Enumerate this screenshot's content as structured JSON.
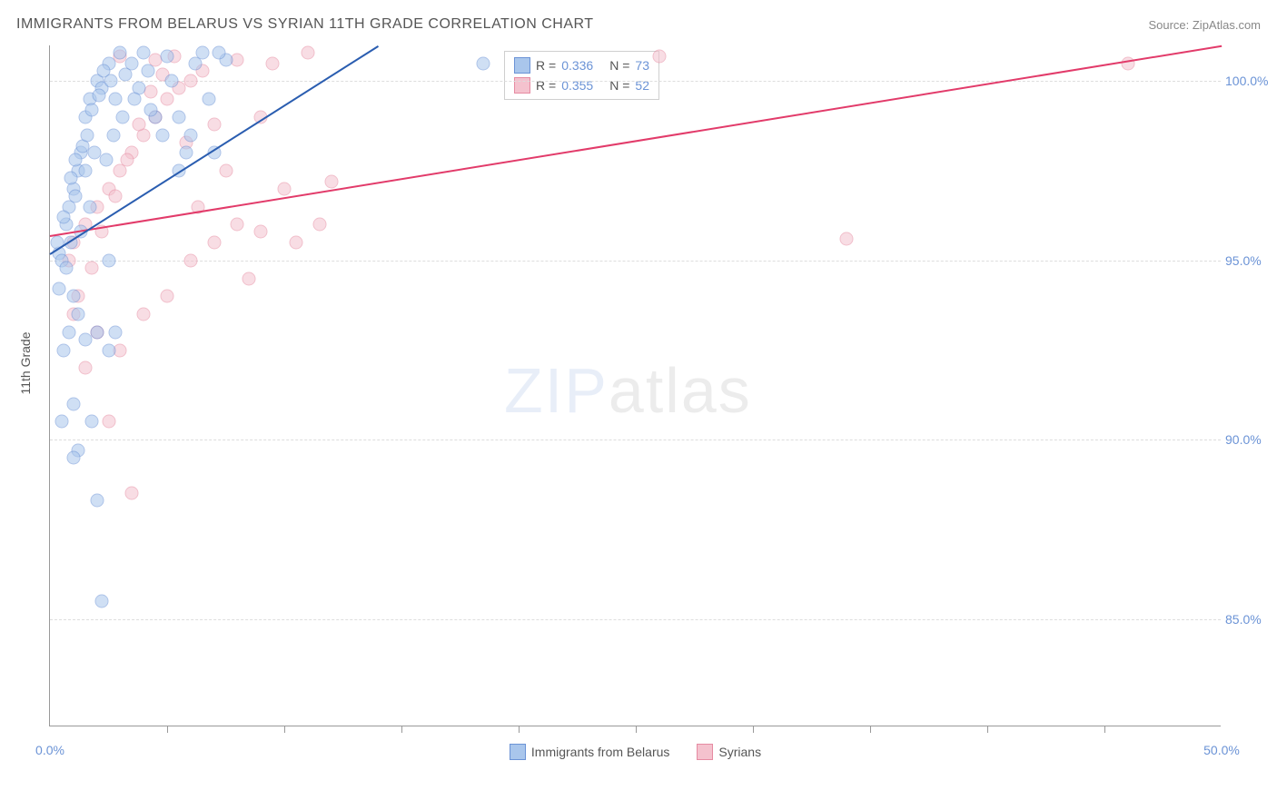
{
  "title": "IMMIGRANTS FROM BELARUS VS SYRIAN 11TH GRADE CORRELATION CHART",
  "source": "Source: ZipAtlas.com",
  "yaxis_label": "11th Grade",
  "watermark_bold": "ZIP",
  "watermark_thin": "atlas",
  "xlim": [
    0,
    50
  ],
  "ylim": [
    82,
    101
  ],
  "yticks": [
    {
      "v": 85.0,
      "label": "85.0%"
    },
    {
      "v": 90.0,
      "label": "90.0%"
    },
    {
      "v": 95.0,
      "label": "95.0%"
    },
    {
      "v": 100.0,
      "label": "100.0%"
    }
  ],
  "xticks_minor": [
    5,
    10,
    15,
    20,
    25,
    30,
    35,
    40,
    45
  ],
  "xticks_label": [
    {
      "v": 0.0,
      "label": "0.0%"
    },
    {
      "v": 50.0,
      "label": "50.0%"
    }
  ],
  "colors": {
    "series_a_fill": "#a9c6ec",
    "series_a_stroke": "#6b93d6",
    "series_a_line": "#2a5db0",
    "series_b_fill": "#f4c2ce",
    "series_b_stroke": "#e68ba2",
    "series_b_line": "#e23b6a",
    "grid": "#dddddd",
    "text_tick": "#6b93d6"
  },
  "series_a": {
    "name": "Immigrants from Belarus",
    "R": "0.336",
    "N": "73",
    "trend": {
      "x1": 0,
      "y1": 95.2,
      "x2": 14,
      "y2": 101
    },
    "points": [
      [
        0.4,
        95.2
      ],
      [
        0.5,
        95.0
      ],
      [
        0.7,
        96.0
      ],
      [
        0.8,
        96.5
      ],
      [
        1.0,
        97.0
      ],
      [
        1.2,
        97.5
      ],
      [
        1.3,
        98.0
      ],
      [
        1.4,
        98.2
      ],
      [
        1.5,
        99.0
      ],
      [
        1.7,
        99.5
      ],
      [
        2.0,
        100.0
      ],
      [
        2.2,
        99.8
      ],
      [
        2.5,
        100.5
      ],
      [
        3.0,
        100.8
      ],
      [
        3.5,
        100.5
      ],
      [
        4.0,
        100.8
      ],
      [
        4.5,
        99.0
      ],
      [
        5.0,
        100.7
      ],
      [
        5.5,
        99.0
      ],
      [
        6.0,
        98.5
      ],
      [
        6.5,
        100.8
      ],
      [
        7.0,
        98.0
      ],
      [
        7.5,
        100.6
      ],
      [
        1.0,
        94.0
      ],
      [
        1.2,
        93.5
      ],
      [
        0.8,
        93.0
      ],
      [
        1.5,
        92.8
      ],
      [
        0.6,
        92.5
      ],
      [
        2.0,
        93.0
      ],
      [
        2.5,
        92.5
      ],
      [
        2.8,
        93.0
      ],
      [
        1.0,
        91.0
      ],
      [
        1.8,
        90.5
      ],
      [
        1.2,
        89.7
      ],
      [
        1.0,
        89.5
      ],
      [
        2.0,
        88.3
      ],
      [
        2.2,
        85.5
      ],
      [
        0.5,
        90.5
      ],
      [
        0.3,
        95.5
      ],
      [
        0.6,
        96.2
      ],
      [
        0.9,
        97.3
      ],
      [
        1.1,
        97.8
      ],
      [
        1.6,
        98.5
      ],
      [
        1.8,
        99.2
      ],
      [
        2.1,
        99.6
      ],
      [
        2.3,
        100.3
      ],
      [
        2.6,
        100.0
      ],
      [
        2.8,
        99.5
      ],
      [
        3.2,
        100.2
      ],
      [
        3.8,
        99.8
      ],
      [
        4.2,
        100.3
      ],
      [
        4.8,
        98.5
      ],
      [
        5.2,
        100.0
      ],
      [
        5.8,
        98.0
      ],
      [
        6.2,
        100.5
      ],
      [
        6.8,
        99.5
      ],
      [
        7.2,
        100.8
      ],
      [
        0.4,
        94.2
      ],
      [
        0.7,
        94.8
      ],
      [
        0.9,
        95.5
      ],
      [
        1.1,
        96.8
      ],
      [
        1.3,
        95.8
      ],
      [
        1.5,
        97.5
      ],
      [
        1.7,
        96.5
      ],
      [
        1.9,
        98.0
      ],
      [
        2.4,
        97.8
      ],
      [
        2.7,
        98.5
      ],
      [
        3.1,
        99.0
      ],
      [
        3.6,
        99.5
      ],
      [
        4.3,
        99.2
      ],
      [
        5.5,
        97.5
      ],
      [
        18.5,
        100.5
      ],
      [
        2.5,
        95.0
      ]
    ]
  },
  "series_b": {
    "name": "Syrians",
    "R": "0.355",
    "N": "52",
    "trend": {
      "x1": 0,
      "y1": 95.7,
      "x2": 50,
      "y2": 101
    },
    "points": [
      [
        0.8,
        95.0
      ],
      [
        1.0,
        95.5
      ],
      [
        1.5,
        96.0
      ],
      [
        2.0,
        96.5
      ],
      [
        2.5,
        97.0
      ],
      [
        3.0,
        97.5
      ],
      [
        3.5,
        98.0
      ],
      [
        4.0,
        98.5
      ],
      [
        4.5,
        99.0
      ],
      [
        5.0,
        99.5
      ],
      [
        5.5,
        99.8
      ],
      [
        6.0,
        100.0
      ],
      [
        6.5,
        100.3
      ],
      [
        7.0,
        98.8
      ],
      [
        7.5,
        97.5
      ],
      [
        8.0,
        96.0
      ],
      [
        8.5,
        94.5
      ],
      [
        9.0,
        99.0
      ],
      [
        9.5,
        100.5
      ],
      [
        10.0,
        97.0
      ],
      [
        10.5,
        95.5
      ],
      [
        11.0,
        100.8
      ],
      [
        11.5,
        96.0
      ],
      [
        12.0,
        97.2
      ],
      [
        2.0,
        93.0
      ],
      [
        3.0,
        92.5
      ],
      [
        4.0,
        93.5
      ],
      [
        5.0,
        94.0
      ],
      [
        6.0,
        95.0
      ],
      [
        7.0,
        95.5
      ],
      [
        2.5,
        90.5
      ],
      [
        3.5,
        88.5
      ],
      [
        1.0,
        93.5
      ],
      [
        1.5,
        92.0
      ],
      [
        1.2,
        94.0
      ],
      [
        1.8,
        94.8
      ],
      [
        2.2,
        95.8
      ],
      [
        2.8,
        96.8
      ],
      [
        3.3,
        97.8
      ],
      [
        3.8,
        98.8
      ],
      [
        4.3,
        99.7
      ],
      [
        4.8,
        100.2
      ],
      [
        5.3,
        100.7
      ],
      [
        5.8,
        98.3
      ],
      [
        6.3,
        96.5
      ],
      [
        3.0,
        100.7
      ],
      [
        4.5,
        100.6
      ],
      [
        34.0,
        95.6
      ],
      [
        46.0,
        100.5
      ],
      [
        26.0,
        100.7
      ],
      [
        8.0,
        100.6
      ],
      [
        9.0,
        95.8
      ]
    ]
  }
}
